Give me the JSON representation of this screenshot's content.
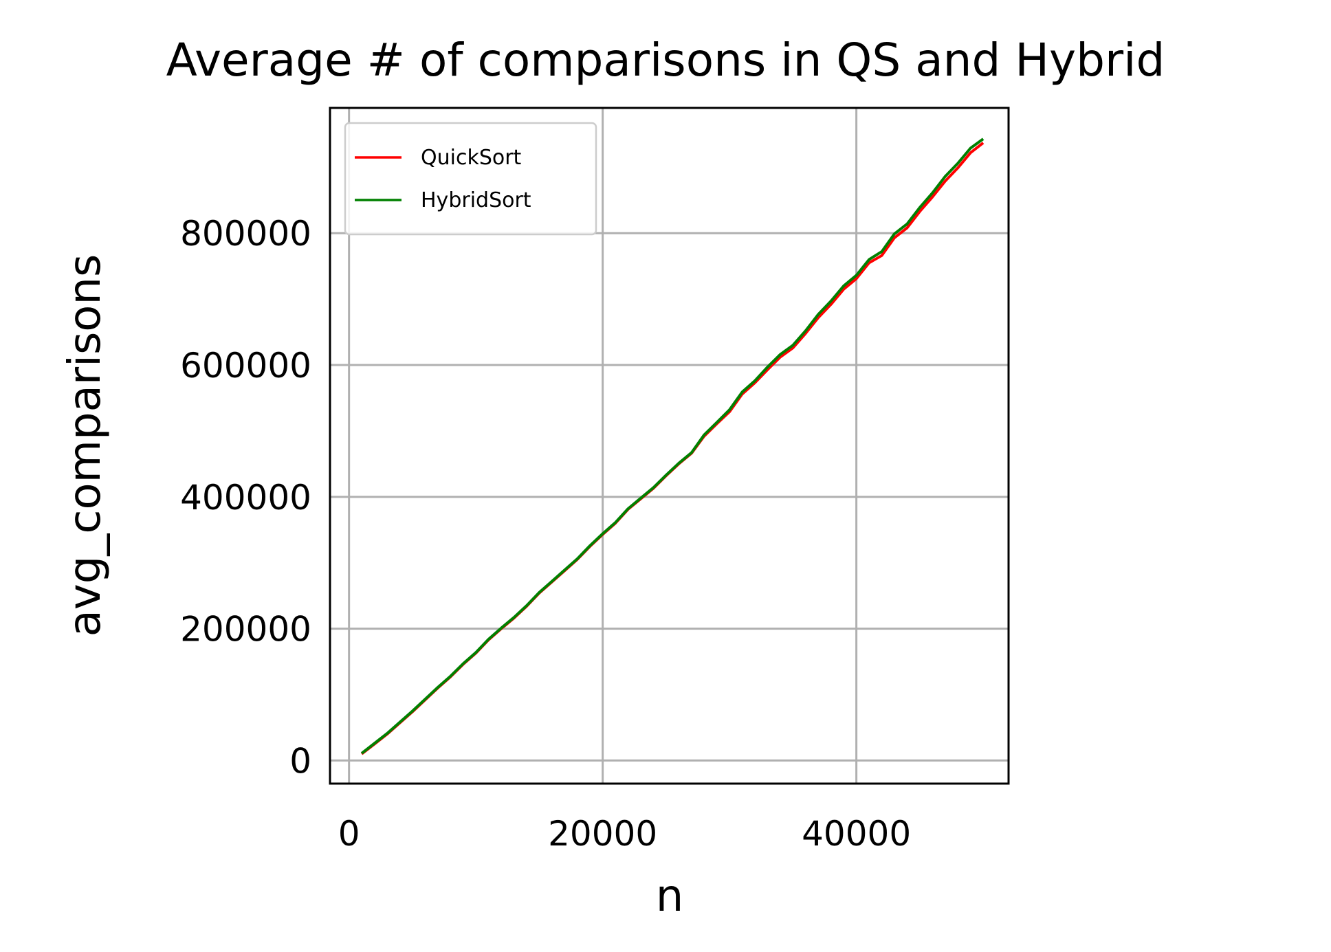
{
  "chart_data": {
    "type": "line",
    "title": "Average # of comparisons in QS and Hybrid",
    "xlabel": "n",
    "ylabel": "avg_comparisons",
    "xlim": [
      -1500,
      52000
    ],
    "ylim": [
      -35000,
      990000
    ],
    "xticks": [
      0,
      20000,
      40000
    ],
    "yticks": [
      0,
      200000,
      400000,
      600000,
      800000
    ],
    "grid": true,
    "legend_position": "upper-left",
    "x": [
      1000,
      2000,
      3000,
      4000,
      5000,
      6000,
      7000,
      8000,
      9000,
      10000,
      11000,
      12000,
      13000,
      14000,
      15000,
      16000,
      17000,
      18000,
      19000,
      20000,
      21000,
      22000,
      23000,
      24000,
      25000,
      26000,
      27000,
      28000,
      29000,
      30000,
      31000,
      32000,
      33000,
      34000,
      35000,
      36000,
      37000,
      38000,
      39000,
      40000,
      41000,
      42000,
      43000,
      44000,
      45000,
      46000,
      47000,
      48000,
      49000,
      50000
    ],
    "series": [
      {
        "name": "QuickSort",
        "color": "#ff0000",
        "values": [
          10000,
          25000,
          40000,
          57000,
          74000,
          92000,
          110000,
          127000,
          146000,
          163000,
          183000,
          200000,
          216000,
          234000,
          254000,
          271000,
          288000,
          305000,
          325000,
          343000,
          360000,
          381000,
          397000,
          413000,
          432000,
          450000,
          466000,
          492000,
          511000,
          529000,
          556000,
          573000,
          593000,
          612000,
          626000,
          648000,
          672000,
          692000,
          715000,
          731000,
          755000,
          766000,
          793000,
          808000,
          833000,
          855000,
          879000,
          899000,
          922000,
          937000
        ]
      },
      {
        "name": "HybridSort",
        "color": "#008000",
        "values": [
          11000,
          26000,
          41000,
          58000,
          75000,
          93000,
          111000,
          128000,
          147000,
          164000,
          184000,
          201000,
          217000,
          235000,
          255000,
          272000,
          289000,
          306000,
          326000,
          344000,
          361000,
          382000,
          398000,
          414000,
          433000,
          451000,
          467000,
          494000,
          513000,
          532000,
          559000,
          576000,
          597000,
          616000,
          630000,
          652000,
          677000,
          697000,
          720000,
          736000,
          760000,
          772000,
          799000,
          814000,
          839000,
          861000,
          886000,
          906000,
          929000,
          943000
        ]
      }
    ]
  }
}
